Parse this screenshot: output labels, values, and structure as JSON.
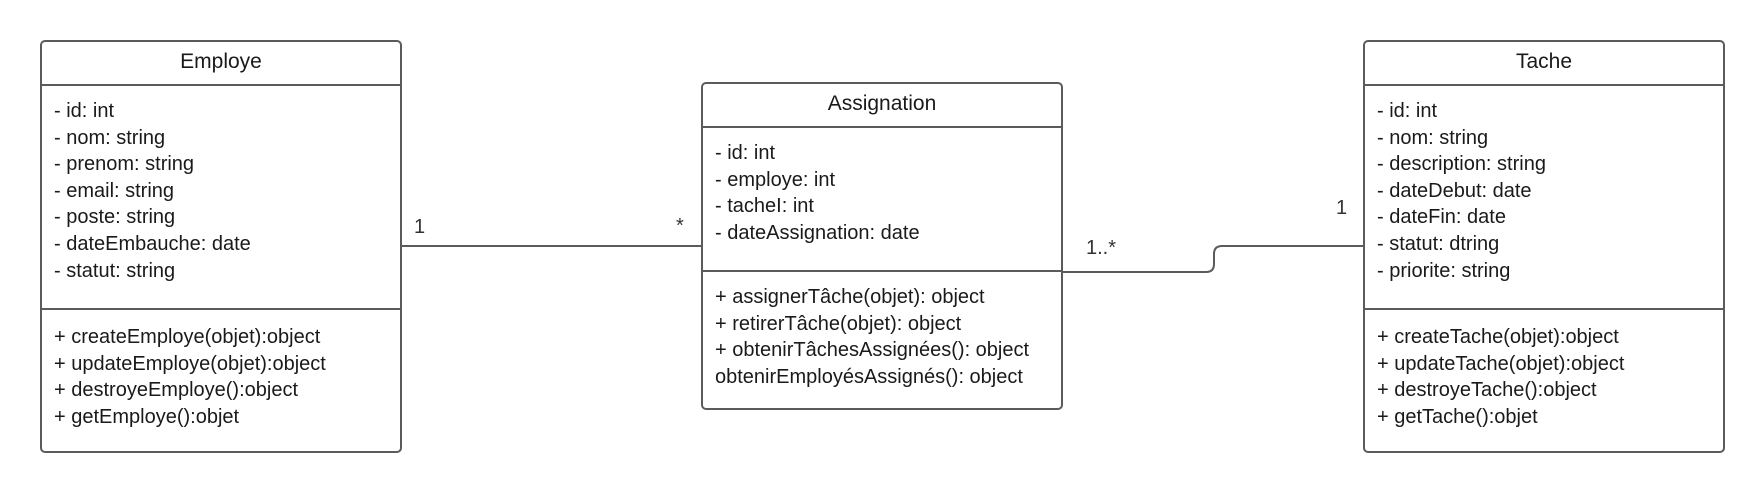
{
  "classes": {
    "employe": {
      "name": "Employe",
      "attributes": [
        "- id: int",
        "- nom: string",
        "- prenom: string",
        "- email: string",
        "- poste: string",
        "- dateEmbauche: date",
        "- statut: string"
      ],
      "methods": [
        "+ createEmploye(objet):object",
        "+ updateEmploye(objet):object",
        "+ destroyeEmploye():object",
        "+ getEmploye():objet"
      ]
    },
    "assignation": {
      "name": "Assignation",
      "attributes": [
        "- id: int",
        "- employe: int",
        "- tacheI: int",
        "- dateAssignation: date"
      ],
      "methods": [
        "+ assignerTâche(objet): object",
        "+ retirerTâche(objet): object",
        "+ obtenirTâchesAssignées(): object",
        "obtenirEmployésAssignés(): object"
      ]
    },
    "tache": {
      "name": "Tache",
      "attributes": [
        "- id: int",
        "- nom: string",
        "- description: string",
        "- dateDebut: date",
        "- dateFin: date",
        "- statut: dtring",
        "- priorite: string"
      ],
      "methods": [
        "+ createTache(objet):object",
        "+ updateTache(objet):object",
        "+ destroyeTache():object",
        "+ getTache():objet"
      ]
    }
  },
  "associations": {
    "employe_assignation": {
      "left": "1",
      "right": "*"
    },
    "assignation_tache": {
      "left": "1..*",
      "right": "1"
    }
  },
  "colors": {
    "border": "#5b5b5b",
    "line": "#5b5b5b",
    "text": "#1a1a1a"
  }
}
